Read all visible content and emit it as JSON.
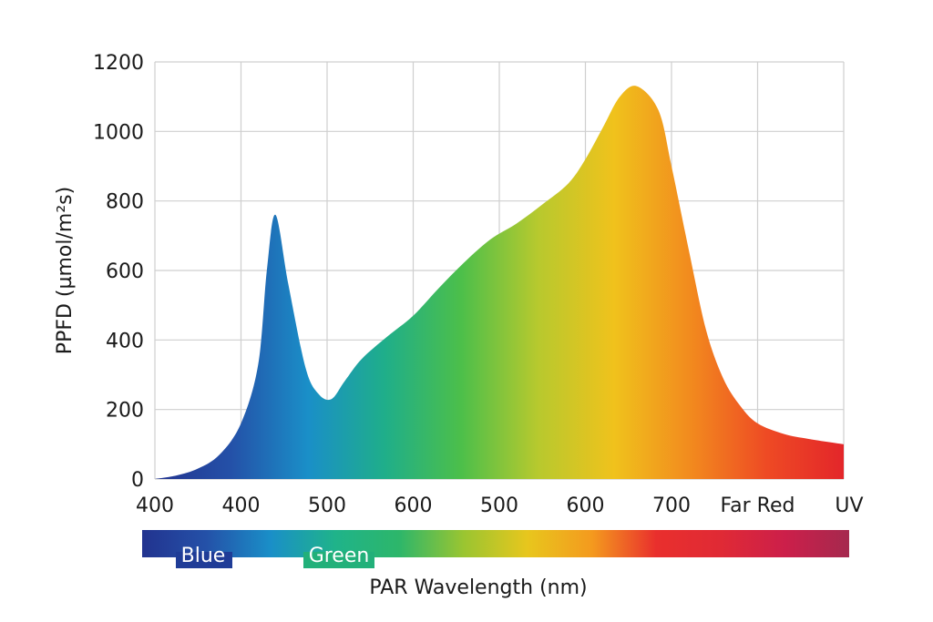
{
  "chart_data": {
    "type": "area",
    "title": "",
    "ylabel": "PPFD (µmol/m²s)",
    "xlabel": "PAR Wavelength (nm)",
    "ylim": [
      0,
      1200
    ],
    "y_ticks": [
      "0",
      "200",
      "400",
      "600",
      "800",
      "1000",
      "1200"
    ],
    "x_tick_labels": [
      "400",
      "400",
      "500",
      "600",
      "500",
      "600",
      "700",
      "Far Red",
      "UV"
    ],
    "grid": true,
    "gradient_colors": [
      "#22338f",
      "#2451a8",
      "#1a8fc8",
      "#1fae8a",
      "#4cbf4a",
      "#b7c92e",
      "#f0c21c",
      "#f28a1e",
      "#ee4a24",
      "#e3262a"
    ],
    "points_by_tick_position": [
      [
        0.0,
        0
      ],
      [
        0.25,
        10
      ],
      [
        0.5,
        30
      ],
      [
        0.75,
        70
      ],
      [
        1.0,
        160
      ],
      [
        1.2,
        330
      ],
      [
        1.3,
        600
      ],
      [
        1.4,
        760
      ],
      [
        1.55,
        560
      ],
      [
        1.75,
        320
      ],
      [
        1.9,
        245
      ],
      [
        2.05,
        230
      ],
      [
        2.2,
        280
      ],
      [
        2.4,
        345
      ],
      [
        2.7,
        410
      ],
      [
        3.0,
        470
      ],
      [
        3.3,
        550
      ],
      [
        3.6,
        625
      ],
      [
        3.9,
        690
      ],
      [
        4.2,
        735
      ],
      [
        4.5,
        790
      ],
      [
        4.8,
        850
      ],
      [
        5.0,
        920
      ],
      [
        5.2,
        1010
      ],
      [
        5.4,
        1100
      ],
      [
        5.6,
        1130
      ],
      [
        5.85,
        1060
      ],
      [
        6.0,
        900
      ],
      [
        6.2,
        660
      ],
      [
        6.4,
        430
      ],
      [
        6.6,
        290
      ],
      [
        6.8,
        210
      ],
      [
        7.0,
        160
      ],
      [
        7.3,
        130
      ],
      [
        7.6,
        115
      ],
      [
        8.0,
        100
      ]
    ],
    "band_bar": {
      "label": "PAR Wavelength (nm)",
      "bands": [
        {
          "name": "Blue",
          "color": "#1f3c97"
        },
        {
          "name": "Green",
          "color": "#22b07a"
        }
      ],
      "gradient_colors": [
        "#22338f",
        "#2451a8",
        "#1a8fc8",
        "#1fb38a",
        "#2db66a",
        "#9ac531",
        "#e8c61d",
        "#f49a1e",
        "#e92f2d",
        "#e02a35",
        "#cc1f4a",
        "#a5294e"
      ]
    }
  }
}
